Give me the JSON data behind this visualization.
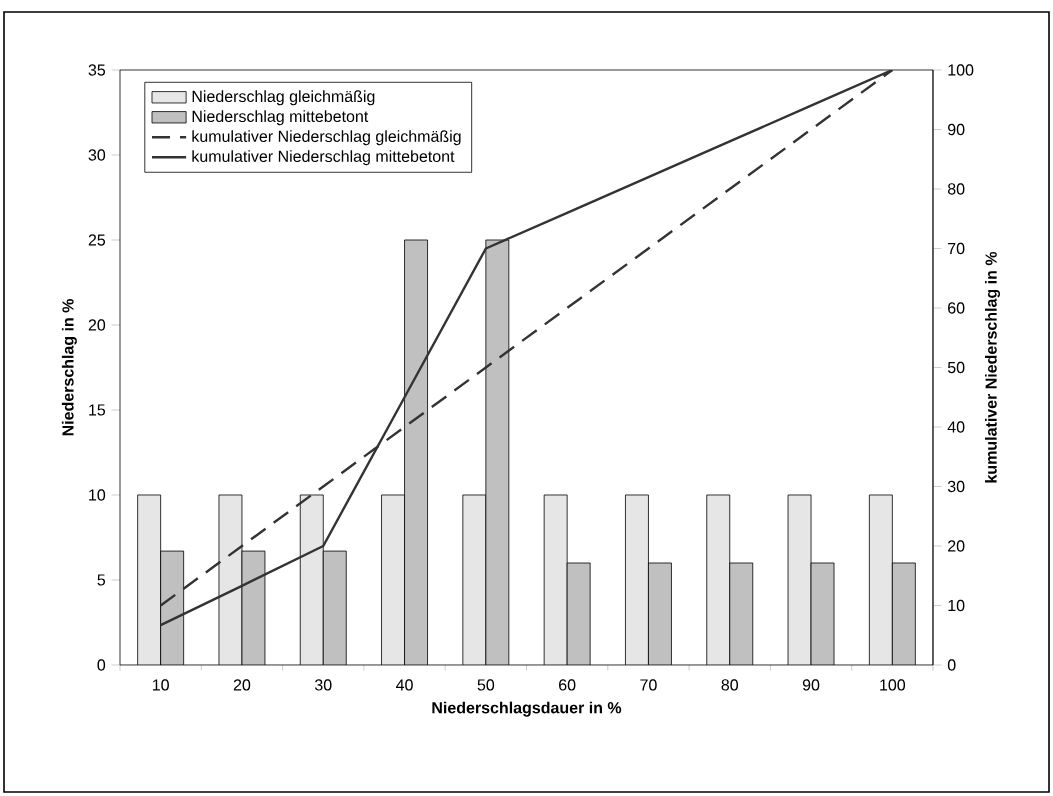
{
  "chart_data": {
    "type": "bar",
    "xlabel": "Niederschlagsdauer in %",
    "ylabel": "Niederschlag in %",
    "y2label": "kumulativer Niederschlag in %",
    "categories": [
      "10",
      "20",
      "30",
      "40",
      "50",
      "60",
      "70",
      "80",
      "90",
      "100"
    ],
    "ylim": [
      0,
      35
    ],
    "yticks": [
      0,
      5,
      10,
      15,
      20,
      25,
      30,
      35
    ],
    "y2lim": [
      0,
      100
    ],
    "y2ticks": [
      0,
      10,
      20,
      30,
      40,
      50,
      60,
      70,
      80,
      90,
      100
    ],
    "legend": "top left",
    "series": [
      {
        "name": "Niederschlag gleichmäßig",
        "color": "#e6e6e6",
        "values": [
          10,
          10,
          10,
          10,
          10,
          10,
          10,
          10,
          10,
          10
        ]
      },
      {
        "name": "Niederschlag mittebetont",
        "color": "#c0c0c0",
        "values": [
          6.7,
          6.7,
          6.7,
          25,
          25,
          6,
          6,
          6,
          6,
          6
        ]
      },
      {
        "name": "kumulativer Niederschlag gleichmäßig",
        "type": "line",
        "axis": "y2",
        "line_style": "dashed",
        "color": "#333333",
        "values": [
          10,
          20,
          30,
          40,
          50,
          60,
          70,
          80,
          90,
          100
        ]
      },
      {
        "name": "kumulativer Niederschlag mittebetont",
        "type": "line",
        "axis": "y2",
        "line_style": "solid",
        "color": "#333333",
        "values": [
          6.7,
          13.3,
          20,
          45,
          70,
          76,
          82,
          88,
          94,
          100
        ]
      }
    ]
  }
}
